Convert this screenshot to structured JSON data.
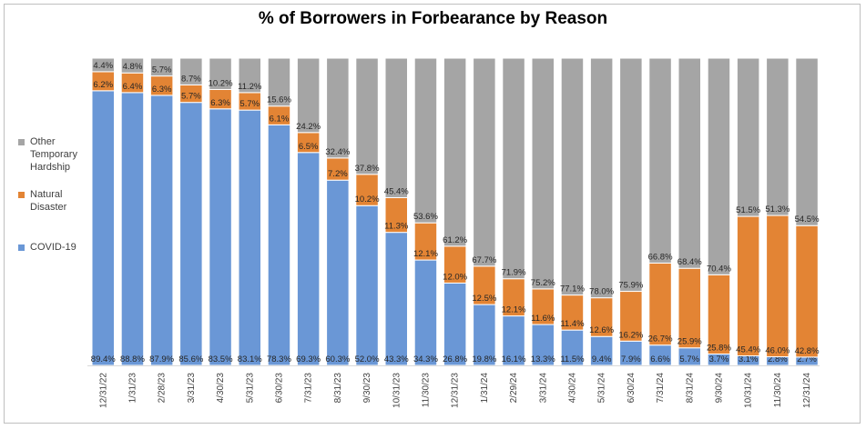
{
  "chart_data": {
    "type": "bar",
    "stacked": true,
    "title": "% of Borrowers in Forbearance by Reason",
    "xlabel": "",
    "ylabel": "",
    "ylim": [
      0,
      100
    ],
    "grid": false,
    "legend_position": "left",
    "categories": [
      "12/31/22",
      "1/31/23",
      "2/28/23",
      "3/31/23",
      "4/30/23",
      "5/31/23",
      "6/30/23",
      "7/31/23",
      "8/31/23",
      "9/30/23",
      "10/31/23",
      "11/30/23",
      "12/31/23",
      "1/31/24",
      "2/29/24",
      "3/31/24",
      "4/30/24",
      "5/31/24",
      "6/30/24",
      "7/31/24",
      "8/31/24",
      "9/30/24",
      "10/31/24",
      "11/30/24",
      "12/31/24"
    ],
    "series": [
      {
        "name": "COVID-19",
        "color": "#6a97d6",
        "values": [
          89.4,
          88.8,
          87.9,
          85.6,
          83.5,
          83.1,
          78.3,
          69.3,
          60.3,
          52.0,
          43.3,
          34.3,
          26.8,
          19.8,
          16.1,
          13.3,
          11.5,
          9.4,
          7.9,
          6.6,
          5.7,
          3.7,
          3.1,
          2.8,
          2.7
        ]
      },
      {
        "name": "Natural Disaster",
        "color": "#e38434",
        "values": [
          6.2,
          6.4,
          6.3,
          5.7,
          6.3,
          5.7,
          6.1,
          6.5,
          7.2,
          10.2,
          11.3,
          12.1,
          12.0,
          12.5,
          12.1,
          11.6,
          11.4,
          12.6,
          16.2,
          26.7,
          25.9,
          25.8,
          45.4,
          46.0,
          42.8
        ]
      },
      {
        "name": "Other Temporary Hardship",
        "color": "#a5a5a5",
        "values": [
          4.4,
          4.8,
          5.7,
          8.7,
          10.2,
          11.2,
          15.6,
          24.2,
          32.4,
          37.8,
          45.4,
          53.6,
          61.2,
          67.7,
          71.9,
          75.2,
          77.1,
          78.0,
          75.9,
          66.8,
          68.4,
          70.4,
          51.5,
          51.3,
          54.5
        ]
      }
    ],
    "data_labels": true,
    "label_format": "%"
  }
}
